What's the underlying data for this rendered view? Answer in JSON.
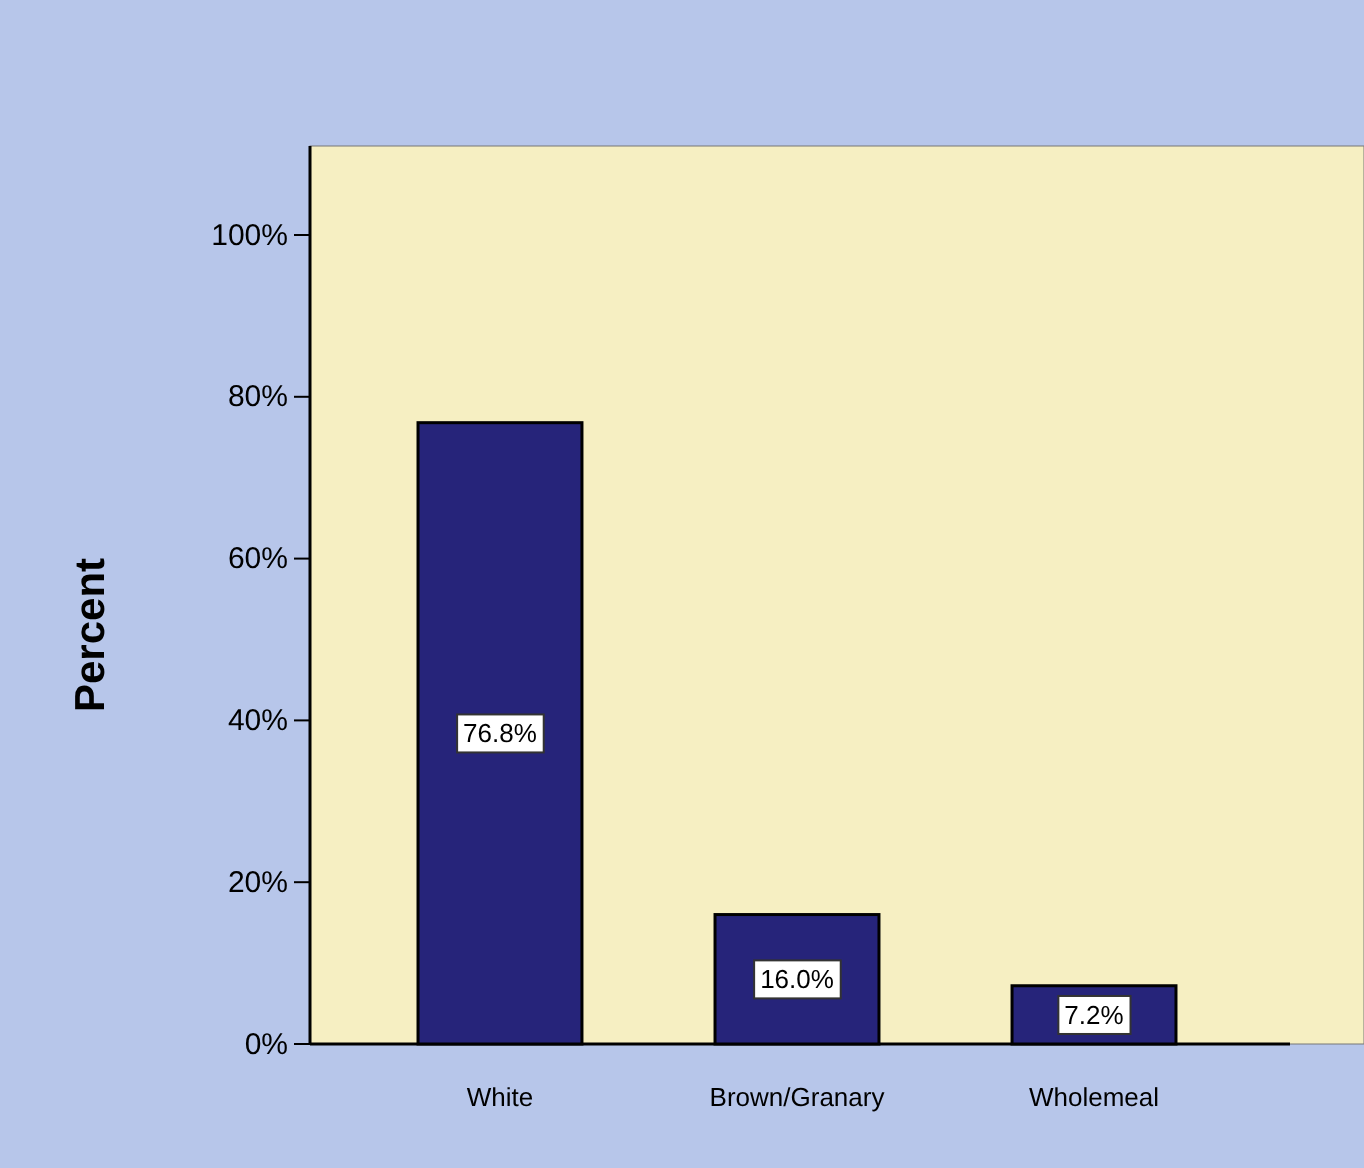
{
  "chart_data": {
    "type": "bar",
    "ylabel": "Percent",
    "categories": [
      "White",
      "Brown/Granary",
      "Wholemeal"
    ],
    "values": [
      76.8,
      16.0,
      7.2
    ],
    "color": "#26247a",
    "value_labels": [
      "76.8%",
      "16.0%",
      "7.2%"
    ],
    "ylim": [
      0,
      111
    ],
    "yticks": [
      {
        "value": 0,
        "label": "0%"
      },
      {
        "value": 20,
        "label": "20%"
      },
      {
        "value": 40,
        "label": "40%"
      },
      {
        "value": 60,
        "label": "60%"
      },
      {
        "value": 80,
        "label": "80%"
      },
      {
        "value": 100,
        "label": "100%"
      }
    ],
    "grid": false
  }
}
